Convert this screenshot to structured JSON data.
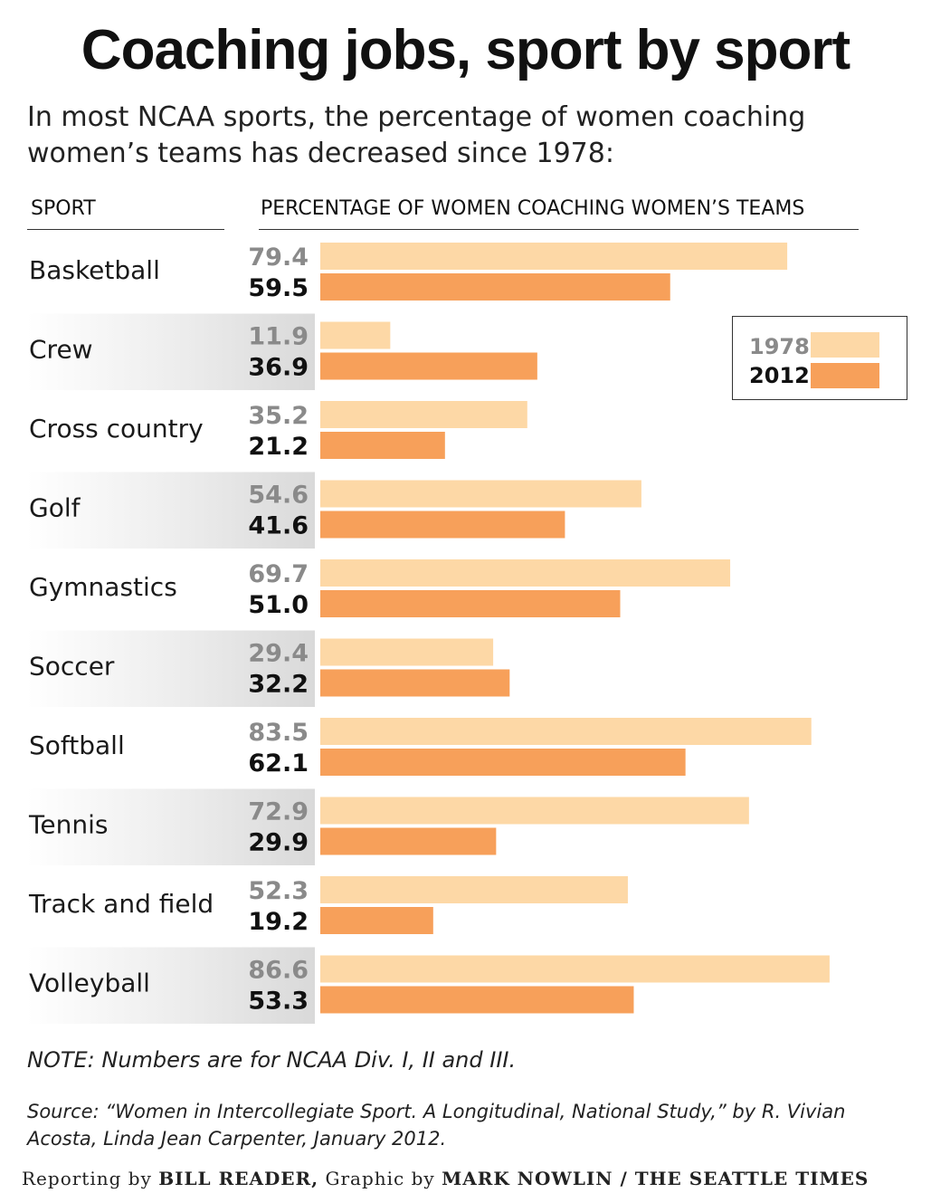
{
  "header": {
    "title": "Coaching jobs, sport by sport",
    "subtitle": "In most NCAA sports, the percentage of women coaching women’s teams has decreased since 1978:",
    "col_sport": "SPORT",
    "col_pct": "PERCENTAGE OF WOMEN COACHING WOMEN’S TEAMS"
  },
  "chart_data": {
    "type": "bar",
    "orientation": "horizontal",
    "title": "Coaching jobs, sport by sport",
    "xlabel": "PERCENTAGE OF WOMEN COACHING WOMEN’S TEAMS",
    "ylabel": "SPORT",
    "xlim": [
      0,
      100
    ],
    "grid": false,
    "legend": "top-right",
    "categories": [
      "Basketball",
      "Crew",
      "Cross country",
      "Golf",
      "Gymnastics",
      "Soccer",
      "Softball",
      "Tennis",
      "Track and field",
      "Volleyball"
    ],
    "series": [
      {
        "name": "1978",
        "color": "#fdd8a6",
        "label_color": "#8a8a8a",
        "values": [
          79.4,
          11.9,
          35.2,
          54.6,
          69.7,
          29.4,
          83.5,
          72.9,
          52.3,
          86.6
        ]
      },
      {
        "name": "2012",
        "color": "#f7a05a",
        "label_color": "#111111",
        "values": [
          59.5,
          36.9,
          21.2,
          41.6,
          51.0,
          32.2,
          62.1,
          29.9,
          19.2,
          53.3
        ]
      }
    ],
    "value_labels": [
      [
        "79.4",
        "11.9",
        "35.2",
        "54.6",
        "69.7",
        "29.4",
        "83.5",
        "72.9",
        "52.3",
        "86.6"
      ],
      [
        "59.5",
        "36.9",
        "21.2",
        "41.6",
        "51.0",
        "32.2",
        "62.1",
        "29.9",
        "19.2",
        "53.3"
      ]
    ],
    "row_shading": "alternate-gray-gradient"
  },
  "legend": {
    "items": [
      {
        "label": "1978",
        "color": "#fdd8a6",
        "text_color": "#8a8a8a"
      },
      {
        "label": "2012",
        "color": "#f7a05a",
        "text_color": "#111111"
      }
    ]
  },
  "footer": {
    "note": "NOTE: Numbers are for NCAA Div. I, II and III.",
    "source": "Source: “Women in Intercollegiate Sport. A Longitudinal, National Study,” by R. Vivian Acosta, Linda Jean Carpenter, January 2012.",
    "reporting_prefix": "Reporting by ",
    "reporter": "BILL READER,",
    "graphic_prefix": " Graphic by ",
    "graphic_credit": "MARK NOWLIN / THE SEATTLE TIMES"
  }
}
